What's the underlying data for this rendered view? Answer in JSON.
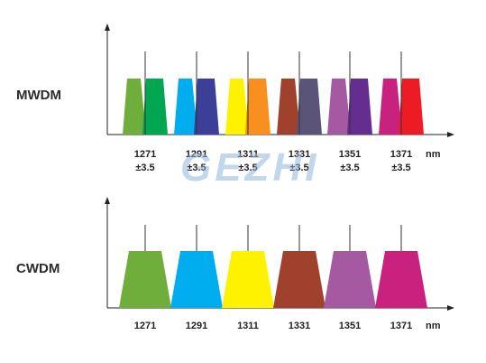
{
  "watermark": "GEZHI",
  "unit": "nm",
  "panels": [
    {
      "label": "MWDM",
      "channels": [
        {
          "wavelength": "1271",
          "tolerance": "±3.5",
          "colors": [
            "#6fae3a",
            "#00a651"
          ]
        },
        {
          "wavelength": "1291",
          "tolerance": "±3.5",
          "colors": [
            "#00aeef",
            "#3b3f98"
          ]
        },
        {
          "wavelength": "1311",
          "tolerance": "±3.5",
          "colors": [
            "#fff200",
            "#f7901e"
          ]
        },
        {
          "wavelength": "1331",
          "tolerance": "±3.5",
          "colors": [
            "#a0412d",
            "#5a5478"
          ]
        },
        {
          "wavelength": "1351",
          "tolerance": "±3.5",
          "colors": [
            "#a459a0",
            "#662d91"
          ]
        },
        {
          "wavelength": "1371",
          "tolerance": "±3.5",
          "colors": [
            "#c9217e",
            "#ed1c24"
          ]
        }
      ]
    },
    {
      "label": "CWDM",
      "channels": [
        {
          "wavelength": "1271",
          "colors": [
            "#6fae3a"
          ]
        },
        {
          "wavelength": "1291",
          "colors": [
            "#00aeef"
          ]
        },
        {
          "wavelength": "1311",
          "colors": [
            "#fff200"
          ]
        },
        {
          "wavelength": "1331",
          "colors": [
            "#a0412d"
          ]
        },
        {
          "wavelength": "1351",
          "colors": [
            "#a459a0"
          ]
        },
        {
          "wavelength": "1371",
          "colors": [
            "#c9217e"
          ]
        }
      ]
    }
  ]
}
